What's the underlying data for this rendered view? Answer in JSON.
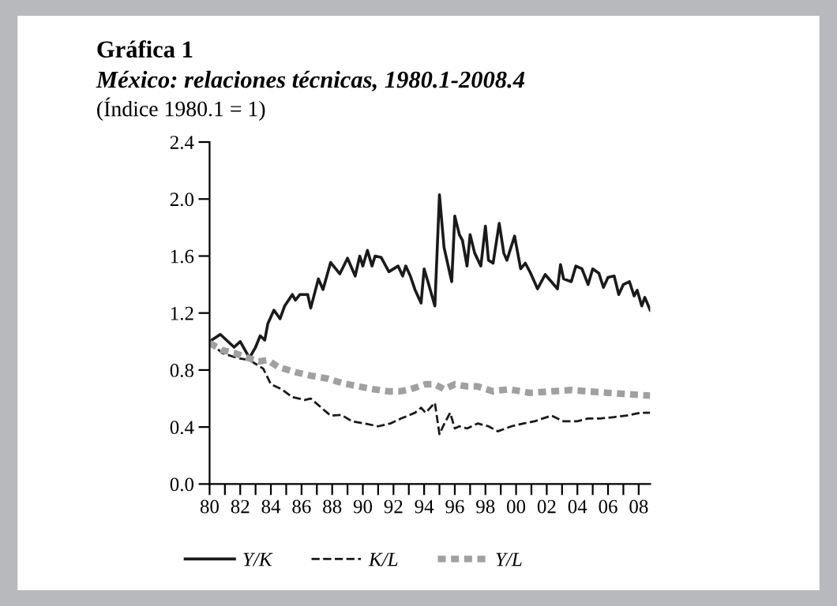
{
  "chart_data": {
    "type": "line",
    "title": "Gráfica 1",
    "subtitle": "México: relaciones técnicas, 1980.1-2008.4",
    "annotations": [
      "(Índice 1980.1 = 1)"
    ],
    "xlim": [
      1980,
      2008.75
    ],
    "xticks": [
      {
        "value": 1980,
        "label": "80"
      },
      {
        "value": 1981,
        "label": null
      },
      {
        "value": 1982,
        "label": "82"
      },
      {
        "value": 1983,
        "label": null
      },
      {
        "value": 1984,
        "label": "84"
      },
      {
        "value": 1985,
        "label": null
      },
      {
        "value": 1986,
        "label": "86"
      },
      {
        "value": 1987,
        "label": null
      },
      {
        "value": 1988,
        "label": "88"
      },
      {
        "value": 1989,
        "label": null
      },
      {
        "value": 1990,
        "label": "90"
      },
      {
        "value": 1991,
        "label": null
      },
      {
        "value": 1992,
        "label": "92"
      },
      {
        "value": 1993,
        "label": null
      },
      {
        "value": 1994,
        "label": "94"
      },
      {
        "value": 1995,
        "label": null
      },
      {
        "value": 1996,
        "label": "96"
      },
      {
        "value": 1997,
        "label": null
      },
      {
        "value": 1998,
        "label": "98"
      },
      {
        "value": 1999,
        "label": null
      },
      {
        "value": 2000,
        "label": "00"
      },
      {
        "value": 2001,
        "label": null
      },
      {
        "value": 2002,
        "label": "02"
      },
      {
        "value": 2003,
        "label": null
      },
      {
        "value": 2004,
        "label": "04"
      },
      {
        "value": 2005,
        "label": null
      },
      {
        "value": 2006,
        "label": "06"
      },
      {
        "value": 2007,
        "label": null
      },
      {
        "value": 2008,
        "label": "08"
      }
    ],
    "ylim": [
      0,
      2.4
    ],
    "yticks": [
      {
        "value": 0,
        "label": "0.0"
      },
      {
        "value": 0.4,
        "label": "0.4"
      },
      {
        "value": 0.8,
        "label": "0.8"
      },
      {
        "value": 1.2,
        "label": "1.2"
      },
      {
        "value": 1.6,
        "label": "1.6"
      },
      {
        "value": 2.0,
        "label": "2.0"
      },
      {
        "value": 2.4,
        "label": "2.4"
      }
    ],
    "grid": false,
    "legend": "bottom",
    "series": [
      {
        "name": "Y/K",
        "color": "#1a1a1a",
        "line_style": "solid",
        "x": [
          1980.0,
          1980.7,
          1981.1,
          1981.6,
          1982.0,
          1982.6,
          1983.0,
          1983.3,
          1983.6,
          1983.8,
          1984.2,
          1984.6,
          1984.9,
          1985.4,
          1985.6,
          1985.9,
          1986.4,
          1986.6,
          1987.1,
          1987.4,
          1987.9,
          1988.5,
          1989.0,
          1989.5,
          1989.8,
          1990.0,
          1990.3,
          1990.6,
          1990.8,
          1991.2,
          1991.7,
          1992.3,
          1992.6,
          1992.8,
          1993.1,
          1993.4,
          1993.8,
          1994.0,
          1994.3,
          1994.7,
          1995.0,
          1995.3,
          1995.8,
          1996.0,
          1996.3,
          1996.5,
          1996.8,
          1997.0,
          1997.3,
          1997.7,
          1998.0,
          1998.2,
          1998.5,
          1998.9,
          1999.2,
          1999.4,
          1999.9,
          2000.3,
          2000.6,
          2000.9,
          2001.4,
          2001.9,
          2002.3,
          2002.7,
          2002.9,
          2003.1,
          2003.6,
          2003.9,
          2004.3,
          2004.7,
          2005.0,
          2005.4,
          2005.7,
          2006.0,
          2006.4,
          2006.7,
          2007.0,
          2007.4,
          2007.7,
          2007.9,
          2008.2,
          2008.4,
          2008.75
        ],
        "values": [
          1.0,
          1.05,
          1.01,
          0.96,
          1.0,
          0.885,
          0.96,
          1.04,
          1.01,
          1.125,
          1.22,
          1.16,
          1.25,
          1.33,
          1.29,
          1.33,
          1.33,
          1.235,
          1.44,
          1.365,
          1.555,
          1.475,
          1.585,
          1.46,
          1.6,
          1.53,
          1.64,
          1.53,
          1.6,
          1.59,
          1.49,
          1.53,
          1.46,
          1.53,
          1.46,
          1.365,
          1.27,
          1.51,
          1.4,
          1.25,
          2.03,
          1.66,
          1.42,
          1.88,
          1.75,
          1.71,
          1.53,
          1.75,
          1.62,
          1.53,
          1.81,
          1.57,
          1.55,
          1.83,
          1.62,
          1.57,
          1.74,
          1.51,
          1.55,
          1.49,
          1.37,
          1.47,
          1.42,
          1.37,
          1.54,
          1.44,
          1.42,
          1.53,
          1.51,
          1.4,
          1.51,
          1.48,
          1.38,
          1.45,
          1.46,
          1.33,
          1.4,
          1.42,
          1.32,
          1.36,
          1.25,
          1.31,
          1.22
        ]
      },
      {
        "name": "K/L",
        "color": "#1a1a1a",
        "line_style": "dashed",
        "x": [
          1980.0,
          1980.8,
          1981.8,
          1982.6,
          1983.5,
          1984.0,
          1984.7,
          1985.4,
          1986.2,
          1986.6,
          1987.3,
          1987.9,
          1988.6,
          1989.3,
          1990.1,
          1991.0,
          1991.8,
          1992.5,
          1993.4,
          1993.8,
          1994.1,
          1994.7,
          1995.0,
          1995.3,
          1995.7,
          1996.0,
          1996.3,
          1996.8,
          1997.5,
          1998.2,
          1998.8,
          1999.7,
          2000.5,
          2001.2,
          2002.3,
          2003.1,
          2004.0,
          2004.7,
          2005.5,
          2006.4,
          2007.2,
          2008.1,
          2008.75
        ],
        "values": [
          1.0,
          0.92,
          0.885,
          0.87,
          0.81,
          0.7,
          0.665,
          0.61,
          0.59,
          0.6,
          0.535,
          0.48,
          0.485,
          0.44,
          0.425,
          0.405,
          0.425,
          0.46,
          0.5,
          0.535,
          0.5,
          0.57,
          0.35,
          0.42,
          0.5,
          0.39,
          0.405,
          0.39,
          0.425,
          0.405,
          0.37,
          0.405,
          0.425,
          0.44,
          0.48,
          0.44,
          0.44,
          0.46,
          0.46,
          0.47,
          0.48,
          0.5,
          0.5
        ]
      },
      {
        "name": "Y/L",
        "color": "#a0a0a0",
        "line_style": "dashed",
        "x": [
          1980.0,
          1980.8,
          1981.6,
          1982.5,
          1983.2,
          1983.8,
          1984.5,
          1985.6,
          1986.6,
          1987.7,
          1988.6,
          1989.7,
          1990.7,
          1991.7,
          1992.4,
          1993.1,
          1994.1,
          1994.7,
          1995.3,
          1996.0,
          1996.8,
          1997.5,
          1998.5,
          1999.5,
          2000.9,
          2002.3,
          2003.6,
          2004.7,
          2006.0,
          2007.4,
          2008.75
        ],
        "values": [
          0.99,
          0.94,
          0.92,
          0.885,
          0.86,
          0.87,
          0.82,
          0.785,
          0.76,
          0.74,
          0.71,
          0.685,
          0.665,
          0.65,
          0.65,
          0.665,
          0.7,
          0.7,
          0.665,
          0.7,
          0.685,
          0.685,
          0.65,
          0.665,
          0.64,
          0.65,
          0.66,
          0.65,
          0.64,
          0.63,
          0.62
        ]
      }
    ]
  }
}
